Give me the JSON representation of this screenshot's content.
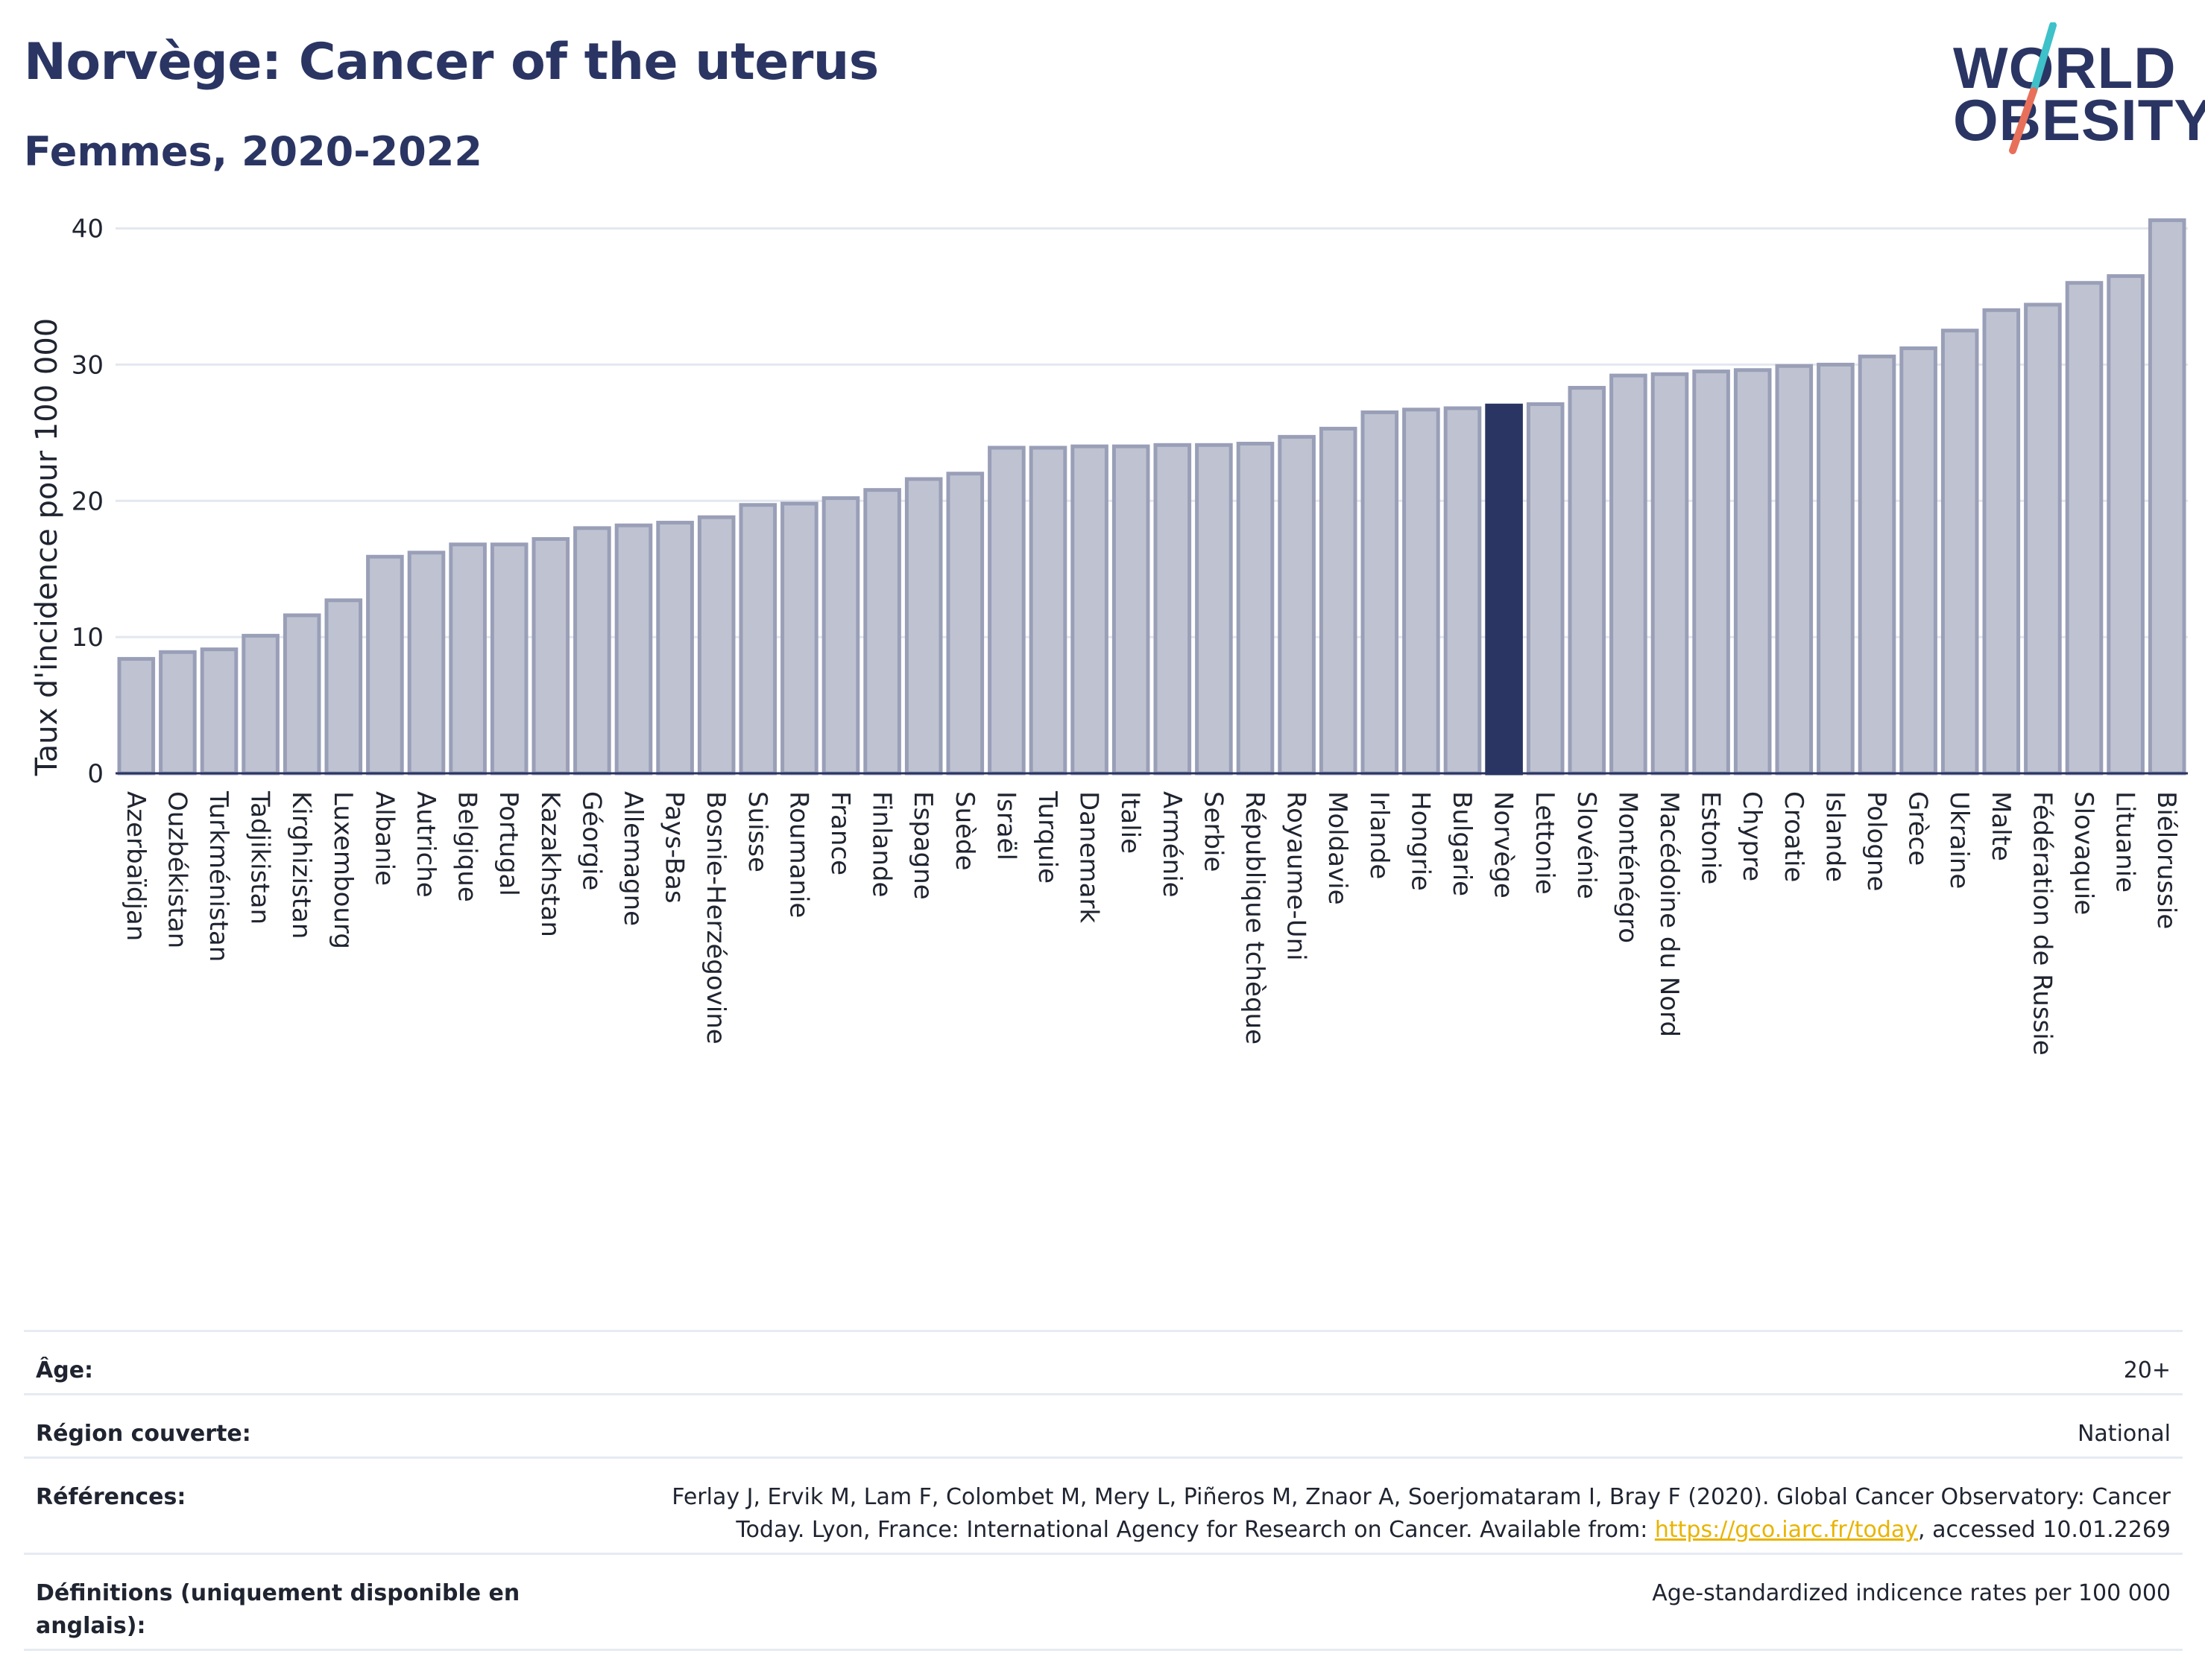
{
  "header": {
    "title": "Norvège: Cancer of the uterus",
    "subtitle": "Femmes, 2020-2022"
  },
  "logo": {
    "line1": "WORLD",
    "line2": "OBESITY",
    "colors": {
      "text": "#2a3563",
      "slash_top": "#3ec1c9",
      "slash_bottom": "#e8705a"
    }
  },
  "colors": {
    "bar_default": "#bfc3d1",
    "bar_default_stroke": "#9a9fb8",
    "bar_highlight": "#2a3563",
    "axis_text": "#1f2430",
    "grid": "#e3e7ee"
  },
  "chart_data": {
    "type": "bar",
    "title": "Norvège: Cancer of the uterus",
    "subtitle": "Femmes, 2020-2022",
    "xlabel": "",
    "ylabel": "Taux d'incidence pour 100 000",
    "ylim": [
      0,
      42
    ],
    "yticks": [
      0,
      10,
      20,
      30,
      40
    ],
    "grid": true,
    "highlight": "Norvège",
    "categories": [
      "Azerbaïdjan",
      "Ouzbékistan",
      "Turkménistan",
      "Tadjikistan",
      "Kirghizistan",
      "Luxembourg",
      "Albanie",
      "Autriche",
      "Belgique",
      "Portugal",
      "Kazakhstan",
      "Géorgie",
      "Allemagne",
      "Pays-Bas",
      "Bosnie-Herzégovine",
      "Suisse",
      "Roumanie",
      "France",
      "Finlande",
      "Espagne",
      "Suède",
      "Israël",
      "Turquie",
      "Danemark",
      "Italie",
      "Arménie",
      "Serbie",
      "République tchèque",
      "Royaume-Uni",
      "Moldavie",
      "Irlande",
      "Hongrie",
      "Bulgarie",
      "Norvège",
      "Lettonie",
      "Slovénie",
      "Monténégro",
      "Macédoine du Nord",
      "Estonie",
      "Chypre",
      "Croatie",
      "Islande",
      "Pologne",
      "Grèce",
      "Ukraine",
      "Malte",
      "Fédération de Russie",
      "Slovaquie",
      "Lituanie",
      "Biélorussie"
    ],
    "values": [
      8.4,
      8.9,
      9.1,
      10.1,
      11.6,
      12.7,
      15.9,
      16.2,
      16.8,
      16.8,
      17.2,
      18.0,
      18.2,
      18.4,
      18.8,
      19.7,
      19.8,
      20.2,
      20.8,
      21.6,
      22.0,
      23.9,
      23.9,
      24.0,
      24.0,
      24.1,
      24.1,
      24.2,
      24.7,
      25.3,
      26.5,
      26.7,
      26.8,
      27.0,
      27.1,
      28.3,
      29.2,
      29.3,
      29.5,
      29.6,
      29.9,
      30.0,
      30.6,
      31.2,
      32.5,
      34.0,
      34.4,
      36.0,
      36.5,
      40.6
    ]
  },
  "meta": {
    "age_label": "Âge:",
    "age_value": "20+",
    "region_label": "Région couverte:",
    "region_value": "National",
    "ref_label": "Références:",
    "ref_text_1": "Ferlay J, Ervik M, Lam F, Colombet M, Mery L, Piñeros M, Znaor A, Soerjomataram I, Bray F (2020). Global Cancer Observatory: Cancer",
    "ref_text_2": "Today. Lyon, France: International Agency for Research on Cancer. Available from: ",
    "ref_link": "https://gco.iarc.fr/today",
    "ref_text_3": ", accessed 10.01.2269",
    "def_label": "Définitions (uniquement disponible en anglais):",
    "def_value": "Age-standardized indicence rates per 100 000"
  }
}
